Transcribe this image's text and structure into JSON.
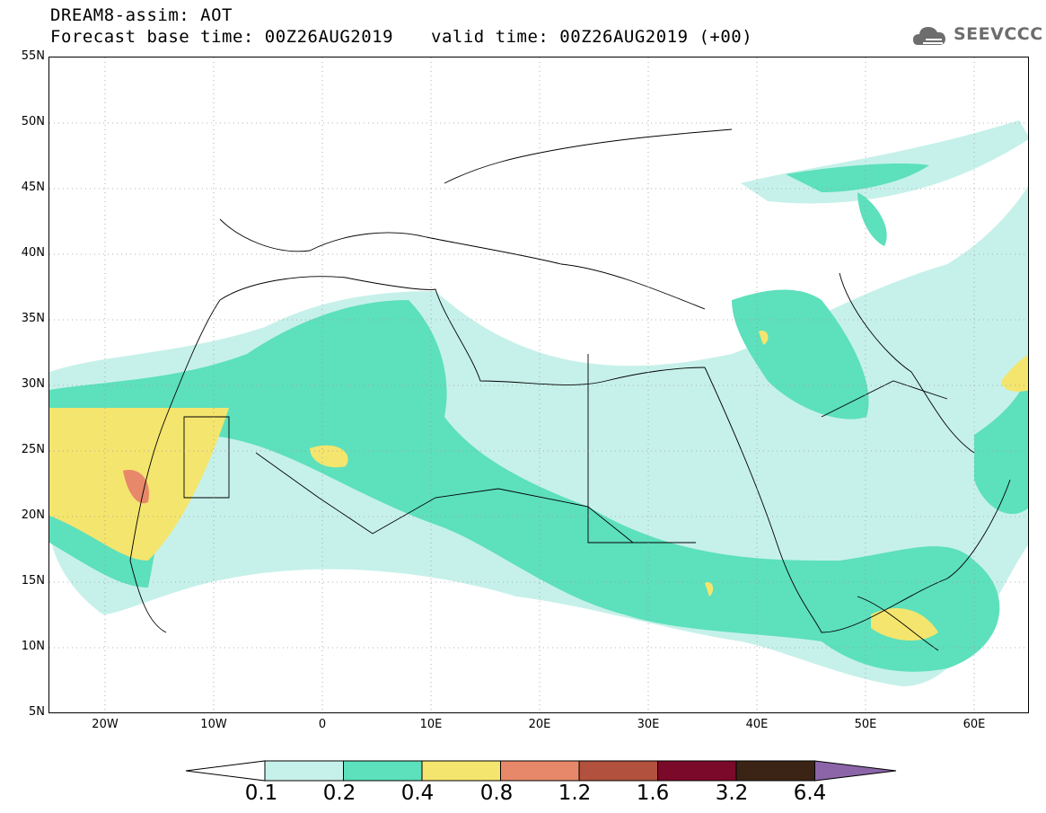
{
  "header": {
    "title_line1": "DREAM8-assim: AOT",
    "title_line2": "Forecast base time: 00Z26AUG2019",
    "valid_time": "valid time: 00Z26AUG2019 (+00)",
    "logo_text": "SEEVCCC"
  },
  "map": {
    "variable": "AOT",
    "projection": "lat-lon",
    "lon_range": [
      -25,
      65
    ],
    "lat_range": [
      5,
      55
    ],
    "lat_labels": [
      "55N",
      "50N",
      "45N",
      "40N",
      "35N",
      "30N",
      "25N",
      "20N",
      "15N",
      "10N",
      "5N"
    ],
    "lon_labels": [
      "20W",
      "10W",
      "0",
      "10E",
      "20E",
      "30E",
      "40E",
      "50E",
      "60E"
    ],
    "gridlines": "dotted"
  },
  "legend": {
    "levels": [
      "0.1",
      "0.2",
      "0.4",
      "0.8",
      "1.2",
      "1.6",
      "3.2",
      "6.4"
    ],
    "colors": [
      "#c6f1ea",
      "#5de0bc",
      "#f4e56e",
      "#e8886a",
      "#b2513d",
      "#7b0a2a",
      "#3b2415",
      "#8c65a8"
    ]
  }
}
